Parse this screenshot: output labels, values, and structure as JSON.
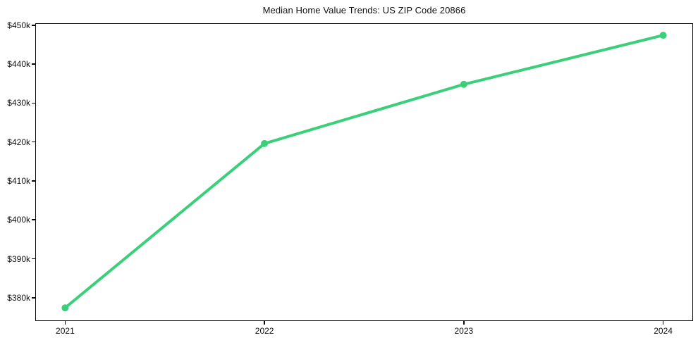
{
  "chart_data": {
    "type": "line",
    "title": "Median Home Value Trends: US ZIP Code 20866",
    "xlabel": "",
    "ylabel": "",
    "categories": [
      "2021",
      "2022",
      "2023",
      "2024"
    ],
    "x": [
      2021,
      2022,
      2023,
      2024
    ],
    "series": [
      {
        "name": "Median Home Value",
        "values": [
          377400,
          419600,
          434800,
          447400
        ]
      }
    ],
    "y_ticks": [
      380000,
      390000,
      400000,
      410000,
      420000,
      430000,
      440000,
      450000
    ],
    "y_tick_labels": [
      "$380k",
      "$390k",
      "$400k",
      "$410k",
      "$420k",
      "$430k",
      "$440k",
      "$450k"
    ],
    "xlim": [
      2020.85,
      2024.15
    ],
    "ylim": [
      374000,
      450500
    ],
    "grid": false,
    "legend": "none",
    "marker": "circle",
    "line_color": "#3ccf7a",
    "axis_color": "#0a0a0a",
    "text_color": "#111111",
    "background": "#ffffff"
  }
}
